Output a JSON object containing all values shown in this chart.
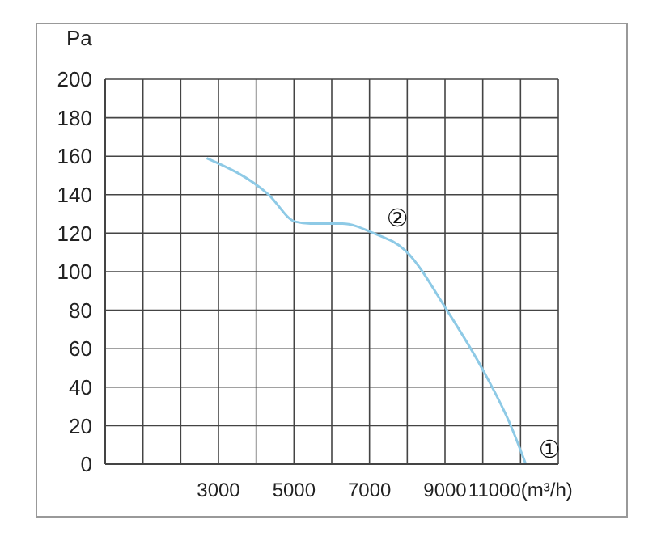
{
  "chart_data": {
    "type": "line",
    "ylabel": "Pa",
    "x": [
      2690,
      4330,
      5030,
      5440,
      6280,
      7110,
      7950,
      9050,
      10030,
      10720,
      11140
    ],
    "series": [
      {
        "color": "#8ecae6",
        "values": [
          159,
          140,
          126,
          125,
          125,
          120,
          111,
          80,
          48,
          21,
          0
        ]
      }
    ],
    "xlim": [
      0,
      12000
    ],
    "xticks": [
      {
        "value": 0,
        "label": null
      },
      {
        "value": 1000,
        "label": null
      },
      {
        "value": 2000,
        "label": null
      },
      3000,
      {
        "value": 4000,
        "label": null
      },
      5000,
      {
        "value": 6000,
        "label": null
      },
      7000,
      {
        "value": 8000,
        "label": null
      },
      9000,
      {
        "value": 10000,
        "label": null
      },
      {
        "value": 11000,
        "label": "11000(m³/h)"
      },
      {
        "value": 12000,
        "label": null
      }
    ],
    "ylim": [
      0,
      200
    ],
    "yticks": [
      0,
      20,
      40,
      60,
      80,
      100,
      120,
      140,
      160,
      180,
      200
    ],
    "grid": true,
    "marker": "none",
    "line_style": "solid",
    "annotations": [
      {
        "text": "②",
        "x": 7110,
        "y": 120
      },
      {
        "text": "①",
        "x": 11140,
        "y": 0
      }
    ]
  }
}
